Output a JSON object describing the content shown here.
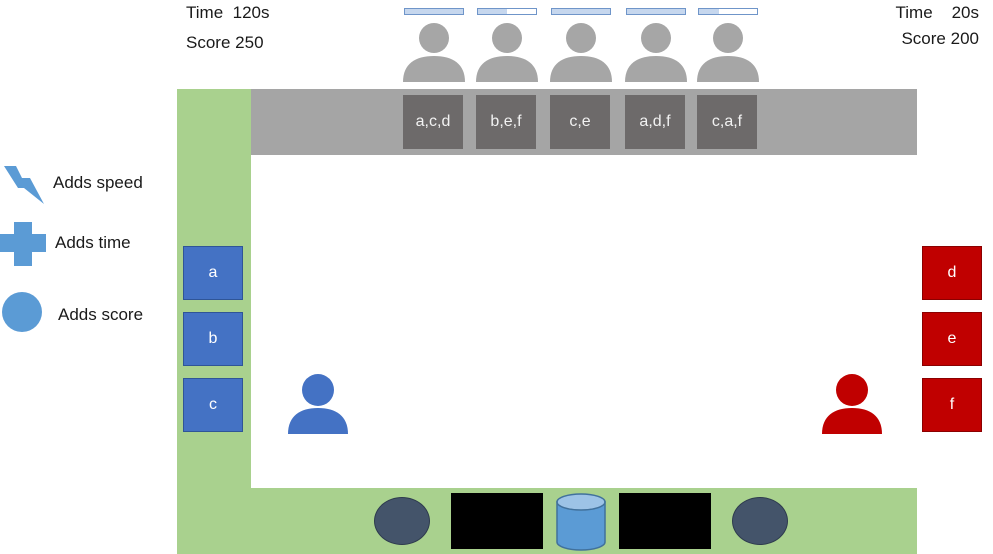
{
  "left_hud": {
    "time_label": "Time",
    "time_value": "120s",
    "score_label": "Score",
    "score_value": "250"
  },
  "right_hud": {
    "time_label": "Time",
    "time_value": "20s",
    "score_label": "Score",
    "score_value": "200"
  },
  "customers": [
    {
      "order": "a,c,d",
      "patience_fill": 1.0
    },
    {
      "order": "b,e,f",
      "patience_fill": 0.5
    },
    {
      "order": "c,e",
      "patience_fill": 1.0
    },
    {
      "order": "a,d,f",
      "patience_fill": 1.0
    },
    {
      "order": "c,a,f",
      "patience_fill": 0.35
    }
  ],
  "legend": [
    {
      "icon": "lightning-icon",
      "label": "Adds speed"
    },
    {
      "icon": "plus-icon",
      "label": "Adds time"
    },
    {
      "icon": "circle-icon",
      "label": "Adds score"
    }
  ],
  "blue_ingredients": [
    "a",
    "b",
    "c"
  ],
  "red_ingredients": [
    "d",
    "e",
    "f"
  ],
  "colors": {
    "green": "#a9d18e",
    "counter": "#a5a5a5",
    "order_card": "#6d6a6a",
    "blue": "#4472c4",
    "red": "#c00000",
    "customer": "#a6a6a6",
    "station_circle": "#44546a",
    "drum": "#5b9bd5",
    "powerup": "#5b9bd5"
  }
}
